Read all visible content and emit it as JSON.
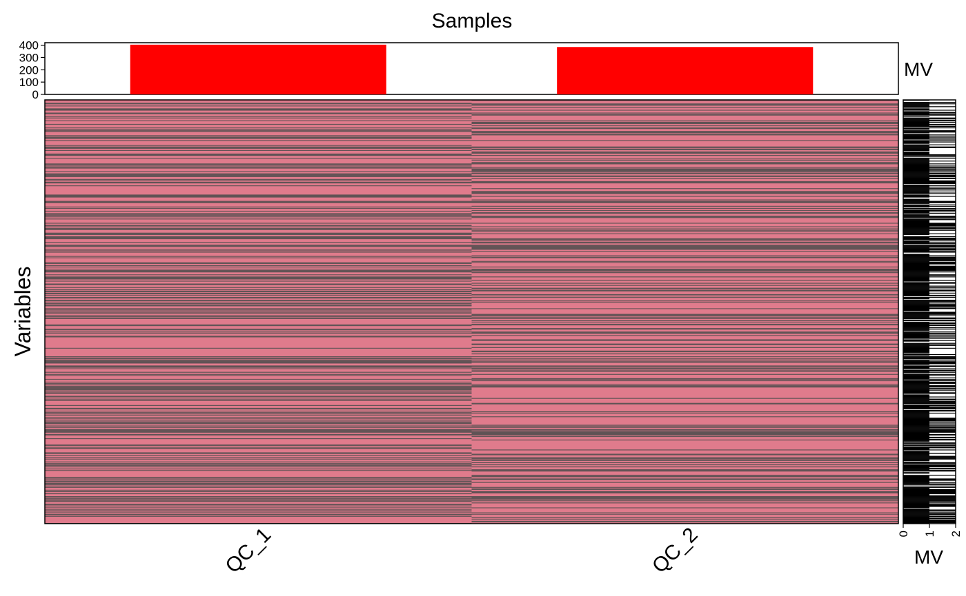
{
  "chart_data": [
    {
      "type": "bar",
      "panel": "top-annotation",
      "title": "Samples",
      "categories": [
        "QC_1",
        "QC_2"
      ],
      "values": [
        404,
        385
      ],
      "ylabel": "MV",
      "ylim": [
        0,
        420
      ],
      "yticks": [
        "0",
        "100",
        "200",
        "300",
        "400"
      ],
      "bar_color": "#ff0000"
    },
    {
      "type": "heatmap",
      "panel": "main",
      "ylabel": "Variables",
      "columns": [
        "QC_1",
        "QC_2"
      ],
      "colors": {
        "present": "#e07b8c",
        "missing": "#4d4d4d"
      },
      "n_rows": 600,
      "missing_per_column": [
        404,
        385
      ]
    },
    {
      "type": "bar",
      "panel": "right-annotation",
      "orientation": "horizontal",
      "xlabel": "MV",
      "xlim": [
        0,
        2
      ],
      "xticks": [
        "0",
        "1",
        "2"
      ],
      "bar_color": "#000000"
    }
  ]
}
